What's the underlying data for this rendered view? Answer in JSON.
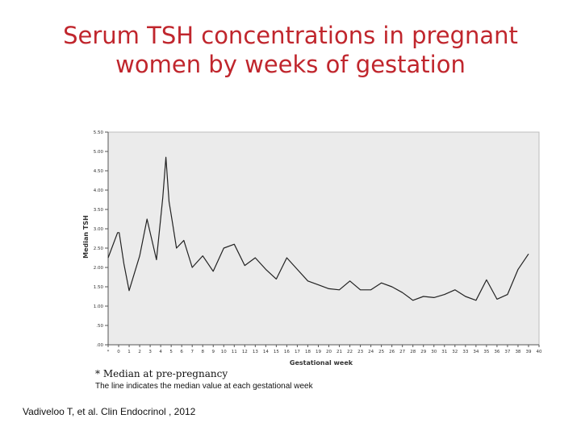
{
  "slide": {
    "title_line1": "Serum TSH concentrations in pregnant",
    "title_line2": "women by weeks of gestation",
    "note_pre_pregnancy": "* Median at pre-pregnancy",
    "note_line": "The line indicates the median value at each gestational week",
    "citation": "Vadiveloo T, et al. Clin Endocrinol , 2012"
  },
  "colors": {
    "title": "#c0262d",
    "plot_bg": "#ebebeb",
    "line": "#222222"
  },
  "chart_data": {
    "type": "line",
    "xlabel": "Gestational week",
    "ylabel": "Median TSH",
    "ylim": [
      0,
      5.5
    ],
    "yticks": [
      ".00",
      ".50",
      "1.00",
      "1.50",
      "2.00",
      "2.50",
      "3.00",
      "3.50",
      "4.00",
      "4.50",
      "5.00",
      "5.50"
    ],
    "categories": [
      "*",
      "0",
      "1",
      "2",
      "3",
      "4",
      "5",
      "6",
      "7",
      "8",
      "9",
      "10",
      "11",
      "12",
      "13",
      "14",
      "15",
      "16",
      "17",
      "18",
      "19",
      "20",
      "21",
      "22",
      "23",
      "24",
      "25",
      "26",
      "27",
      "28",
      "29",
      "30",
      "31",
      "32",
      "33",
      "34",
      "35",
      "36",
      "37",
      "38",
      "39",
      "40"
    ],
    "points": [
      {
        "x": 0,
        "y": 2.25
      },
      {
        "x": 0.9,
        "y": 2.9
      },
      {
        "x": 1.05,
        "y": 2.9
      },
      {
        "x": 1.5,
        "y": 2.1
      },
      {
        "x": 2,
        "y": 1.4
      },
      {
        "x": 3,
        "y": 2.3
      },
      {
        "x": 3.7,
        "y": 3.25
      },
      {
        "x": 4.6,
        "y": 2.2
      },
      {
        "x": 5.2,
        "y": 3.8
      },
      {
        "x": 5.5,
        "y": 4.85
      },
      {
        "x": 5.8,
        "y": 3.7
      },
      {
        "x": 6.1,
        "y": 3.2
      },
      {
        "x": 6.5,
        "y": 2.5
      },
      {
        "x": 7.2,
        "y": 2.7
      },
      {
        "x": 8,
        "y": 2.0
      },
      {
        "x": 9,
        "y": 2.3
      },
      {
        "x": 10,
        "y": 1.9
      },
      {
        "x": 11,
        "y": 2.5
      },
      {
        "x": 12,
        "y": 2.6
      },
      {
        "x": 13,
        "y": 2.05
      },
      {
        "x": 14,
        "y": 2.25
      },
      {
        "x": 15,
        "y": 1.95
      },
      {
        "x": 16,
        "y": 1.7
      },
      {
        "x": 17,
        "y": 2.25
      },
      {
        "x": 18,
        "y": 1.95
      },
      {
        "x": 19,
        "y": 1.65
      },
      {
        "x": 20,
        "y": 1.55
      },
      {
        "x": 21,
        "y": 1.45
      },
      {
        "x": 22,
        "y": 1.42
      },
      {
        "x": 23,
        "y": 1.65
      },
      {
        "x": 24,
        "y": 1.42
      },
      {
        "x": 25,
        "y": 1.42
      },
      {
        "x": 26,
        "y": 1.6
      },
      {
        "x": 27,
        "y": 1.5
      },
      {
        "x": 28,
        "y": 1.35
      },
      {
        "x": 29,
        "y": 1.15
      },
      {
        "x": 30,
        "y": 1.25
      },
      {
        "x": 31,
        "y": 1.22
      },
      {
        "x": 32,
        "y": 1.3
      },
      {
        "x": 33,
        "y": 1.42
      },
      {
        "x": 34,
        "y": 1.25
      },
      {
        "x": 35,
        "y": 1.15
      },
      {
        "x": 36,
        "y": 1.68
      },
      {
        "x": 37,
        "y": 1.18
      },
      {
        "x": 38,
        "y": 1.3
      },
      {
        "x": 39,
        "y": 1.95
      },
      {
        "x": 40,
        "y": 2.35
      }
    ],
    "grid": false
  }
}
